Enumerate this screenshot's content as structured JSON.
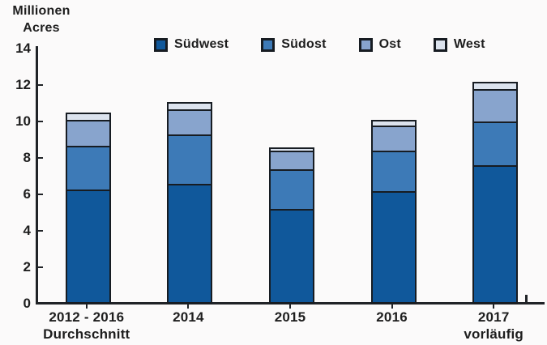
{
  "page": {
    "background": "#fbfafa"
  },
  "y_axis": {
    "title_line1": "Millionen",
    "title_line2": "Acres",
    "ticks": [
      0,
      2,
      4,
      6,
      8,
      10,
      12,
      14
    ]
  },
  "chart_data": {
    "type": "bar",
    "stacked": true,
    "title": "Millionen Acres",
    "ylabel": "Millionen Acres",
    "xlabel": "",
    "ylim": [
      0,
      14
    ],
    "yticks": [
      0,
      2,
      4,
      6,
      8,
      10,
      12,
      14
    ],
    "grid": false,
    "legend_position": "top",
    "categories": [
      "2012 - 2016 Durchschnitt",
      "2014",
      "2015",
      "2016",
      "2017 vorläufig"
    ],
    "category_lines": [
      [
        "2012 - 2016",
        "Durchschnitt"
      ],
      [
        "2014"
      ],
      [
        "2015"
      ],
      [
        "2016"
      ],
      [
        "2017",
        "vorläufig"
      ]
    ],
    "series": [
      {
        "name": "Südwest",
        "color": "#10589b",
        "values": [
          6.2,
          6.5,
          5.1,
          6.1,
          7.5
        ]
      },
      {
        "name": "Südost",
        "color": "#3d7ab7",
        "values": [
          2.4,
          2.7,
          2.2,
          2.2,
          2.4
        ]
      },
      {
        "name": "Ost",
        "color": "#88a4cd",
        "values": [
          1.4,
          1.4,
          1.0,
          1.4,
          1.8
        ]
      },
      {
        "name": "West",
        "color": "#dce3ee",
        "values": [
          0.3,
          0.3,
          0.1,
          0.2,
          0.3
        ]
      }
    ],
    "totals": [
      10.3,
      10.9,
      8.4,
      9.9,
      12.0
    ]
  },
  "colors": {
    "bar_border": "#171c22",
    "axis": "#202327",
    "text": "#1e1e1e"
  }
}
